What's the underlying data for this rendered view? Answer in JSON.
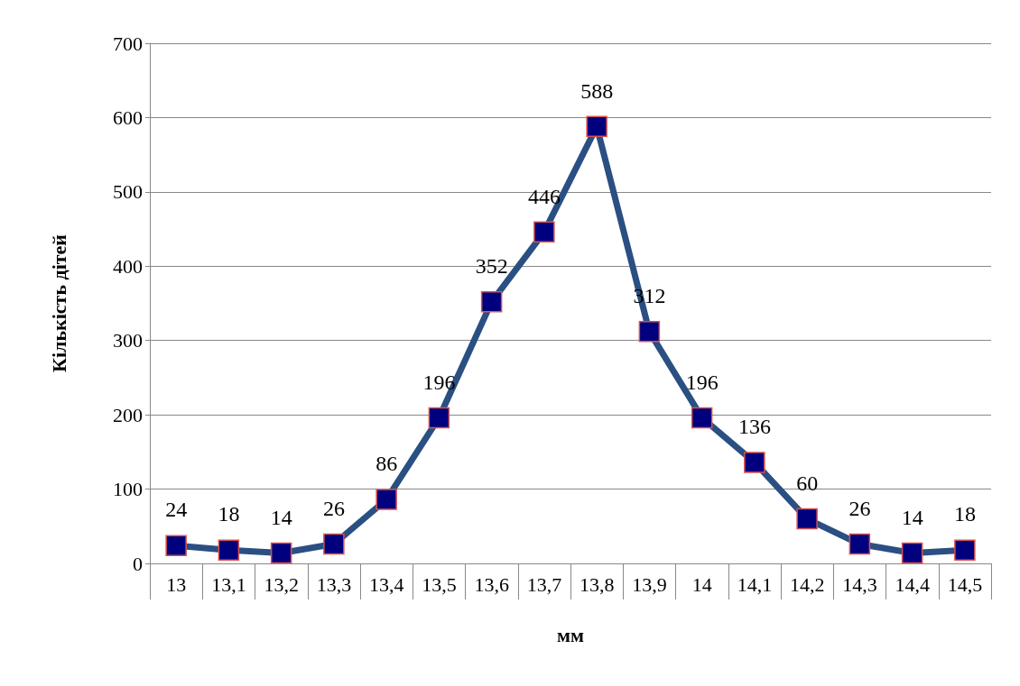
{
  "chart_data": {
    "type": "line",
    "xlabel": "мм",
    "ylabel": "Кількість дітей",
    "categories": [
      "13",
      "13,1",
      "13,2",
      "13,3",
      "13,4",
      "13,5",
      "13,6",
      "13,7",
      "13,8",
      "13,9",
      "14",
      "14,1",
      "14,2",
      "14,3",
      "14,4",
      "14,5"
    ],
    "series": [
      {
        "color": "#2a4f82",
        "values": [
          24,
          18,
          14,
          26,
          86,
          196,
          352,
          446,
          588,
          312,
          196,
          136,
          60,
          26,
          14,
          18
        ]
      }
    ],
    "ylim": [
      0,
      700
    ],
    "yticks": [
      0,
      100,
      200,
      300,
      400,
      500,
      600,
      700
    ],
    "grid": "y",
    "marker": "square",
    "data_labels": true
  }
}
